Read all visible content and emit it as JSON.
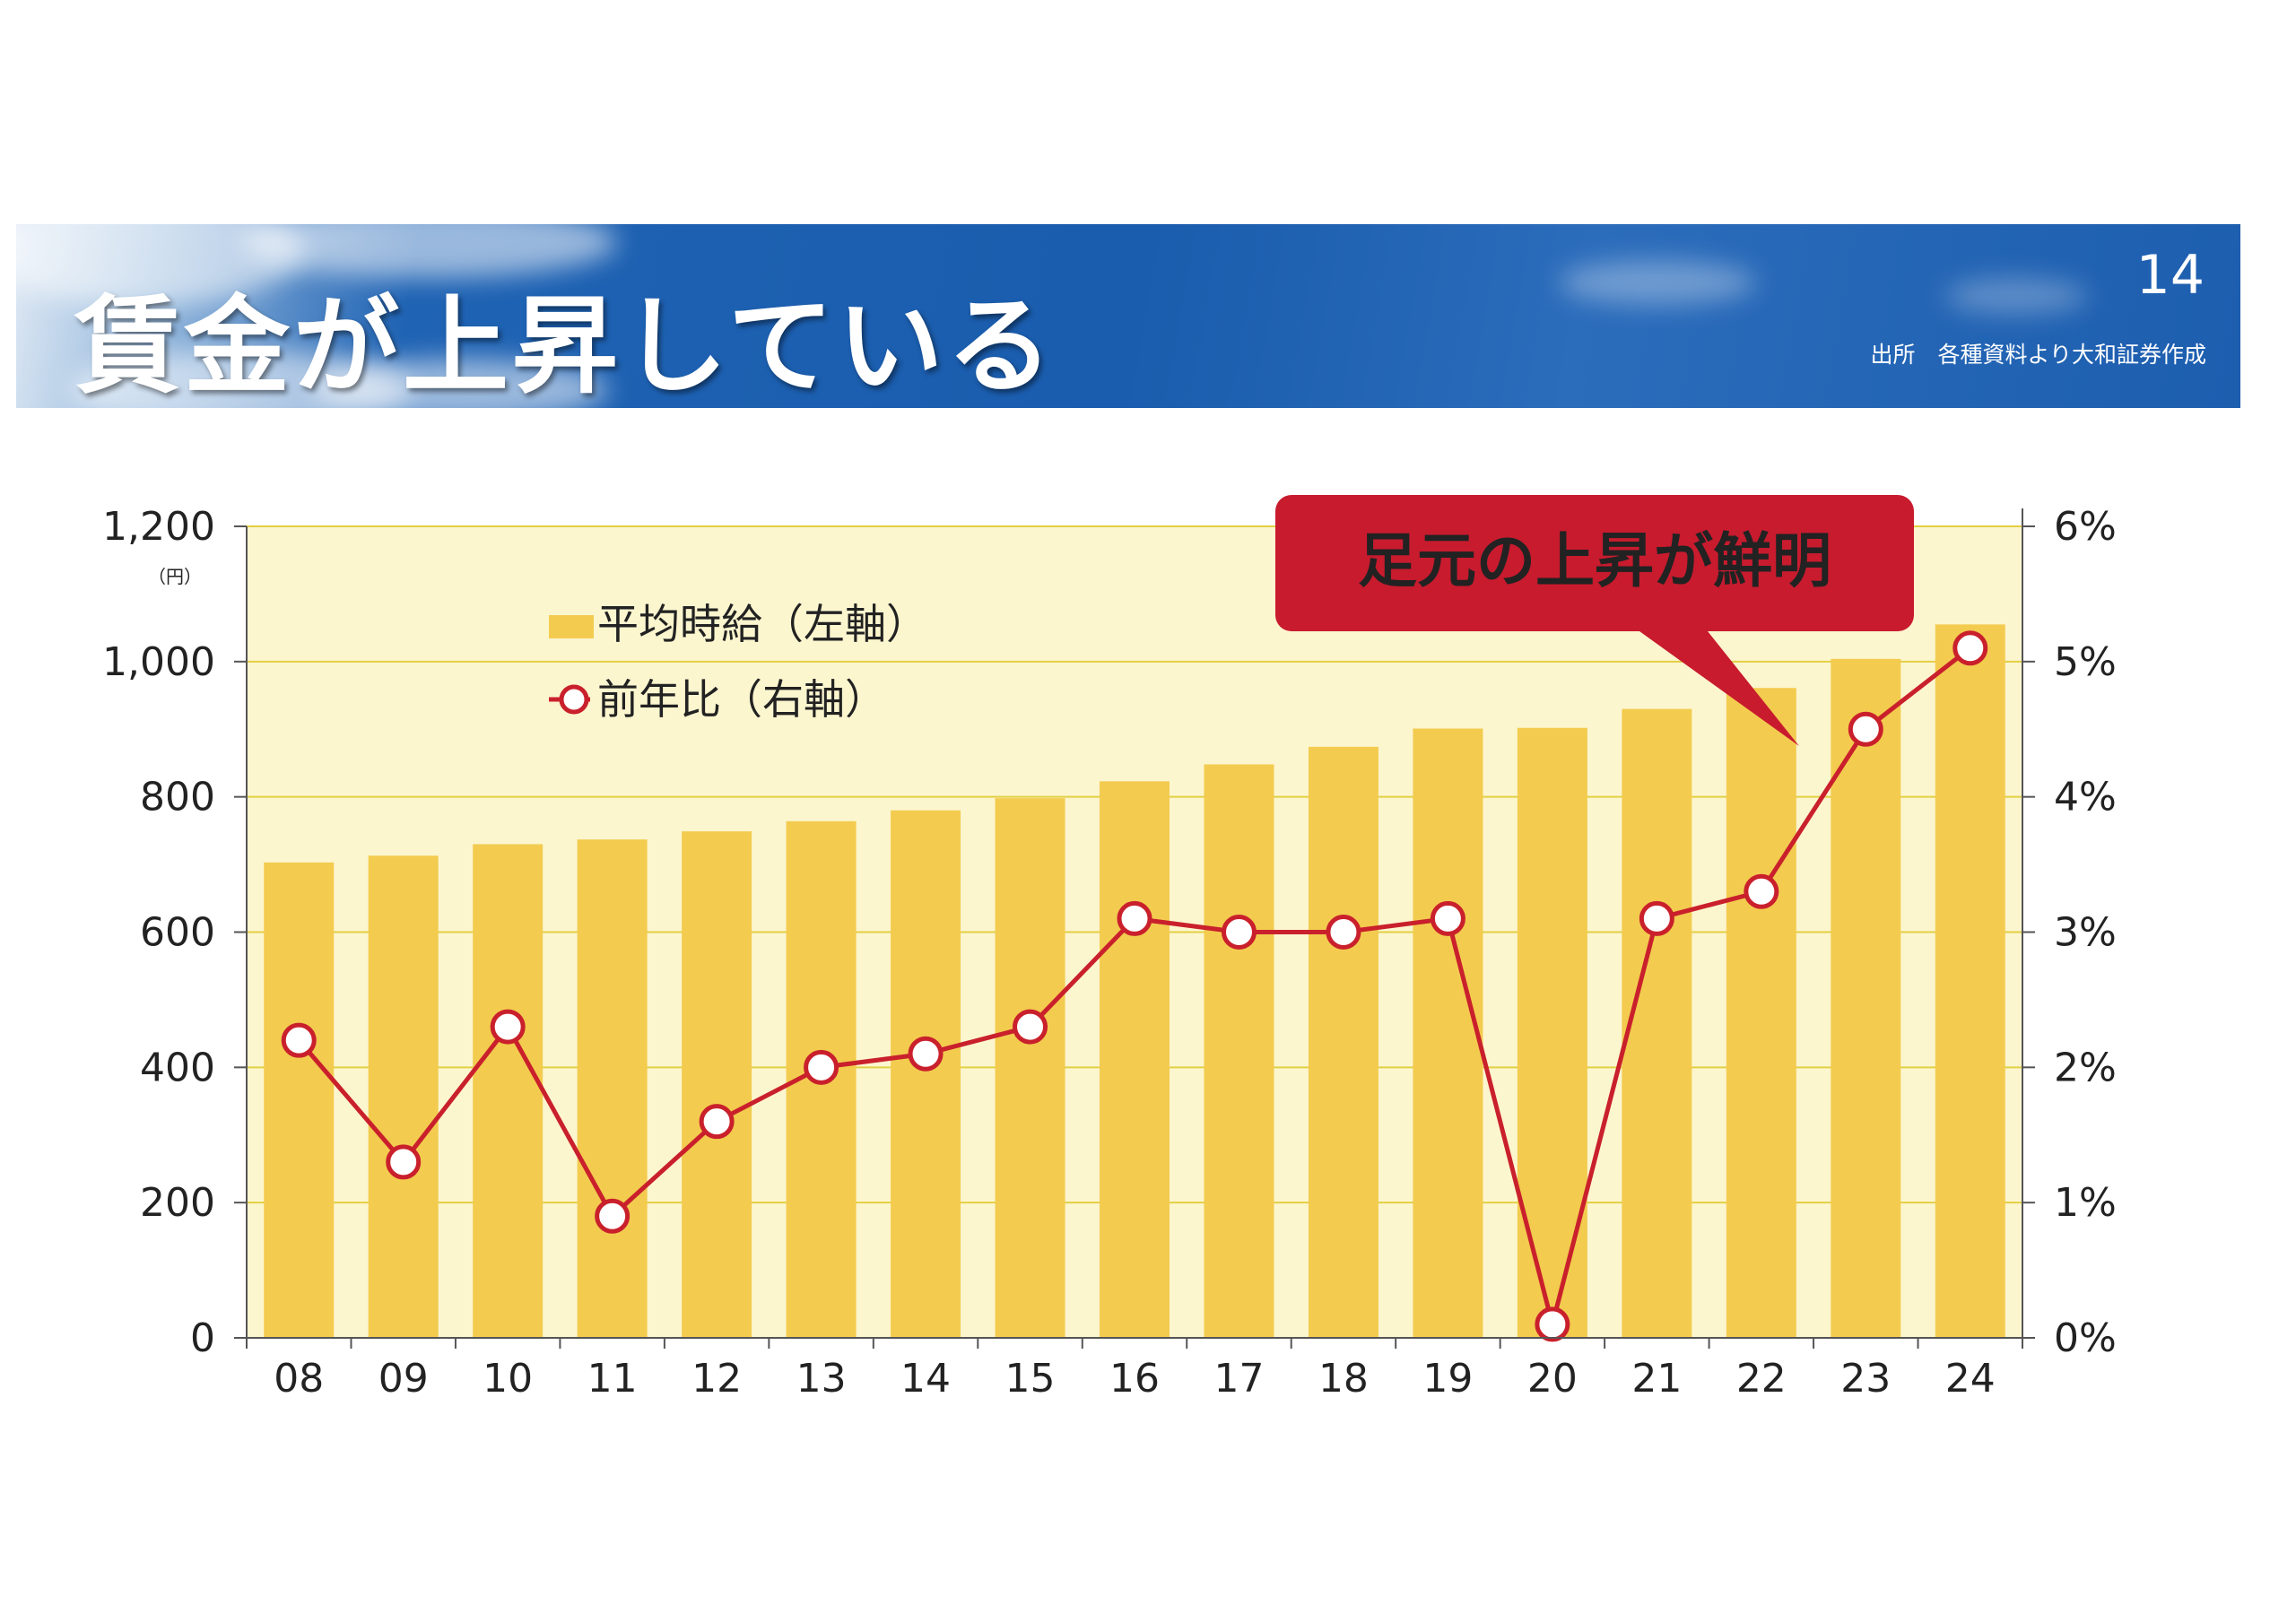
{
  "header": {
    "title": "賃金が上昇している",
    "page_number": "14",
    "source": "出所　各種資料より大和証券作成"
  },
  "colors": {
    "banner": "#1a5cad",
    "bar": "#f3cb4f",
    "plot_bg": "#fcf6cf",
    "line": "#c9202c",
    "callout": "#c81b2e"
  },
  "callout": {
    "text": "足元の上昇が鮮明"
  },
  "chart_data": {
    "type": "bar",
    "categories": [
      "08",
      "09",
      "10",
      "11",
      "12",
      "13",
      "14",
      "15",
      "16",
      "17",
      "18",
      "19",
      "20",
      "21",
      "22",
      "23",
      "24"
    ],
    "series": [
      {
        "name": "平均時給（左軸）",
        "type": "bar",
        "axis": "left",
        "values": [
          703,
          713,
          730,
          737,
          749,
          764,
          780,
          798,
          823,
          848,
          874,
          901,
          902,
          930,
          961,
          1004,
          1055
        ]
      },
      {
        "name": "前年比（右軸）",
        "type": "line",
        "axis": "right",
        "values": [
          2.2,
          1.3,
          2.3,
          0.9,
          1.6,
          2.0,
          2.1,
          2.3,
          3.1,
          3.0,
          3.0,
          3.1,
          0.1,
          3.1,
          3.3,
          4.5,
          5.1
        ]
      }
    ],
    "left_axis": {
      "ylim": [
        0,
        1200
      ],
      "ticks": [
        "0",
        "200",
        "400",
        "600",
        "800",
        "1,000",
        "1,200"
      ],
      "unit": "（円）"
    },
    "right_axis": {
      "ylim": [
        0,
        6
      ],
      "ticks": [
        "0%",
        "1%",
        "2%",
        "3%",
        "4%",
        "5%",
        "6%"
      ]
    },
    "legend": {
      "placement": "top-left"
    },
    "grid": true
  }
}
